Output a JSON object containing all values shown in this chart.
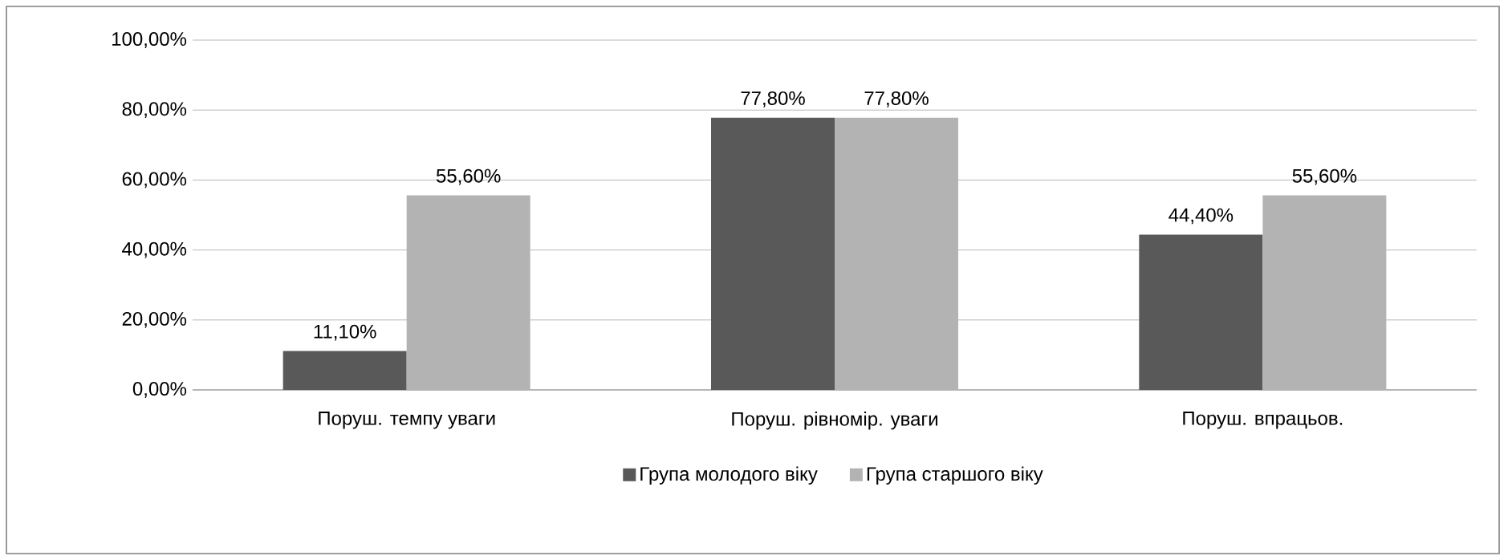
{
  "chart_data": {
    "type": "bar",
    "categories": [
      "Поруш. темпу уваги",
      "Поруш. рівномір. уваги",
      "Поруш. впрацьов."
    ],
    "series": [
      {
        "name": "Група молодого віку",
        "color": "#595959",
        "values": [
          11.1,
          77.8,
          44.4
        ],
        "value_labels": [
          "11,10%",
          "77,80%",
          "44,40%"
        ]
      },
      {
        "name": "Група старшого віку",
        "color": "#b3b3b3",
        "values": [
          55.6,
          77.8,
          55.6
        ],
        "value_labels": [
          "55,60%",
          "77,80%",
          "55,60%"
        ]
      }
    ],
    "ylim": [
      0,
      100
    ],
    "yticks": [
      {
        "value": 0,
        "label": "0,00%"
      },
      {
        "value": 20,
        "label": "20,00%"
      },
      {
        "value": 40,
        "label": "40,00%"
      },
      {
        "value": 60,
        "label": "60,00%"
      },
      {
        "value": 80,
        "label": "80,00%"
      },
      {
        "value": 100,
        "label": "100,00%"
      }
    ],
    "grid": "y",
    "legend": "bottom"
  }
}
